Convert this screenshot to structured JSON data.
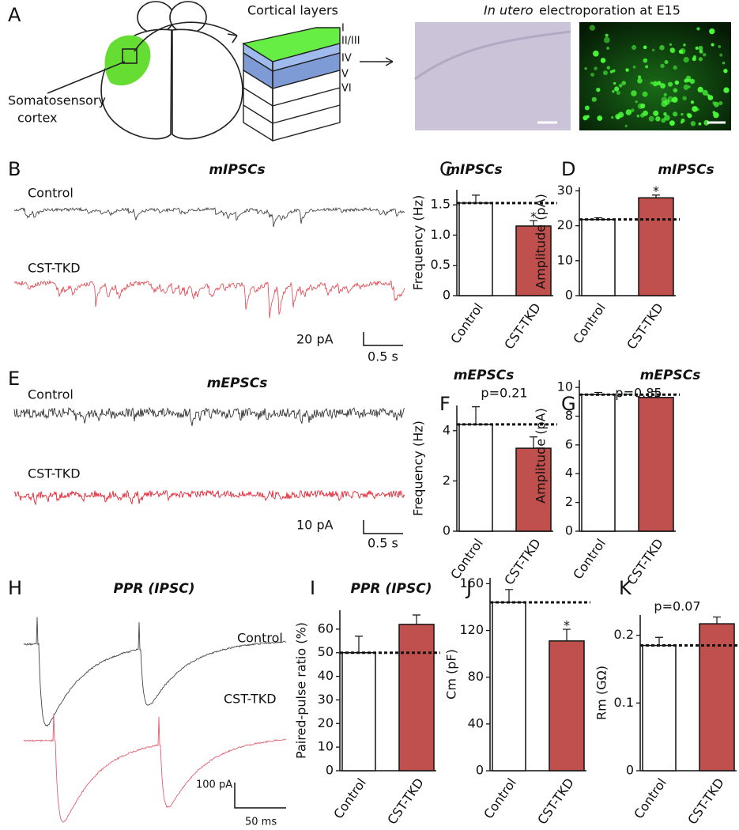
{
  "panel_labels": [
    "A",
    "B",
    "C",
    "D",
    "E",
    "F",
    "G",
    "H",
    "I",
    "J",
    "K"
  ],
  "panel_a": {
    "region_label": [
      "Somatosensory",
      "cortex"
    ],
    "layers_title": "Cortical layers",
    "layers": [
      "I",
      "II/III",
      "IV",
      "V",
      "VI"
    ],
    "electroporation_title": [
      "In utero",
      "electroporation at E15"
    ]
  },
  "traces": [
    {
      "title": "mIPSCs",
      "conditions": [
        "Control",
        "CST-TKD"
      ],
      "scale": [
        "20 pA",
        "0.5 s"
      ]
    },
    {
      "title": "mEPSCs",
      "conditions": [
        "Control",
        "CST-TKD"
      ],
      "scale": [
        "10 pA",
        "0.5 s"
      ]
    },
    {
      "title": "PPR (IPSC)",
      "conditions": [
        "Control",
        "CST-TKD"
      ],
      "scale": [
        "100 pA",
        "50 ms"
      ]
    }
  ],
  "chart_data": [
    {
      "type": "bar",
      "title": "mIPSCs",
      "ylabel": "Frequency (Hz)",
      "categories": [
        "Control",
        "CST-TKD"
      ],
      "values": [
        1.53,
        1.15
      ],
      "errors": [
        0.13,
        0.09
      ],
      "colors": [
        "#ffffff",
        "#c0504d"
      ],
      "ylim": [
        0,
        1.75
      ],
      "yticks": [
        0,
        0.5,
        {
          "value": 1,
          "label": "1.0"
        },
        1.5
      ],
      "annotation": "*"
    },
    {
      "type": "bar",
      "title": "mIPSCs",
      "ylabel": "Amplitude (pA)",
      "categories": [
        "Control",
        "CST-TKD"
      ],
      "values": [
        21.8,
        28
      ],
      "errors": [
        0.5,
        0.8
      ],
      "colors": [
        "#ffffff",
        "#c0504d"
      ],
      "ylim": [
        0,
        31
      ],
      "yticks": [
        0,
        10,
        20,
        30
      ],
      "annotation": "*"
    },
    {
      "type": "bar",
      "title": "mEPSCs",
      "ylabel": "Frequency (Hz)",
      "categories": [
        "Control",
        "CST-TKD"
      ],
      "values": [
        4.25,
        3.3
      ],
      "errors": [
        0.7,
        0.45
      ],
      "colors": [
        "#ffffff",
        "#c0504d"
      ],
      "ylim": [
        0,
        5
      ],
      "yticks": [
        0,
        2,
        4
      ],
      "annotation": "p=0.21"
    },
    {
      "type": "bar",
      "title": "mEPSCs",
      "ylabel": "Amplitude (pA)",
      "categories": [
        "Control",
        "CST-TKD"
      ],
      "values": [
        9.5,
        9.3
      ],
      "errors": [
        0.15,
        0.4
      ],
      "colors": [
        "#ffffff",
        "#c0504d"
      ],
      "ylim": [
        0,
        10.5
      ],
      "yticks": [
        0,
        2,
        4,
        6,
        8,
        10
      ],
      "annotation": "p=0.85"
    },
    {
      "type": "bar",
      "title": "PPR (IPSC)",
      "ylabel": "Paired-pulse ratio (%)",
      "categories": [
        "Control",
        "CST-TKD"
      ],
      "values": [
        50,
        62
      ],
      "errors": [
        7,
        4
      ],
      "colors": [
        "#ffffff",
        "#c0504d"
      ],
      "ylim": [
        0,
        68
      ],
      "yticks": [
        0,
        10,
        20,
        30,
        40,
        50,
        60
      ]
    },
    {
      "type": "bar",
      "ylabel": "Cm (pF)",
      "categories": [
        "Control",
        "CST-TKD"
      ],
      "values": [
        144,
        111
      ],
      "errors": [
        11,
        10
      ],
      "colors": [
        "#ffffff",
        "#c0504d"
      ],
      "ylim": [
        0,
        165
      ],
      "yticks": [
        0,
        40,
        80,
        120,
        160
      ],
      "annotation": "*"
    },
    {
      "type": "bar",
      "ylabel": "Rm (GΩ)",
      "categories": [
        "Control",
        "CST-TKD"
      ],
      "values": [
        0.185,
        0.217
      ],
      "errors": [
        0.012,
        0.01
      ],
      "colors": [
        "#ffffff",
        "#c0504d"
      ],
      "ylim": [
        0,
        0.23
      ],
      "yticks": [
        0,
        0.1,
        0.2
      ],
      "annotation": "p=0.07"
    }
  ]
}
